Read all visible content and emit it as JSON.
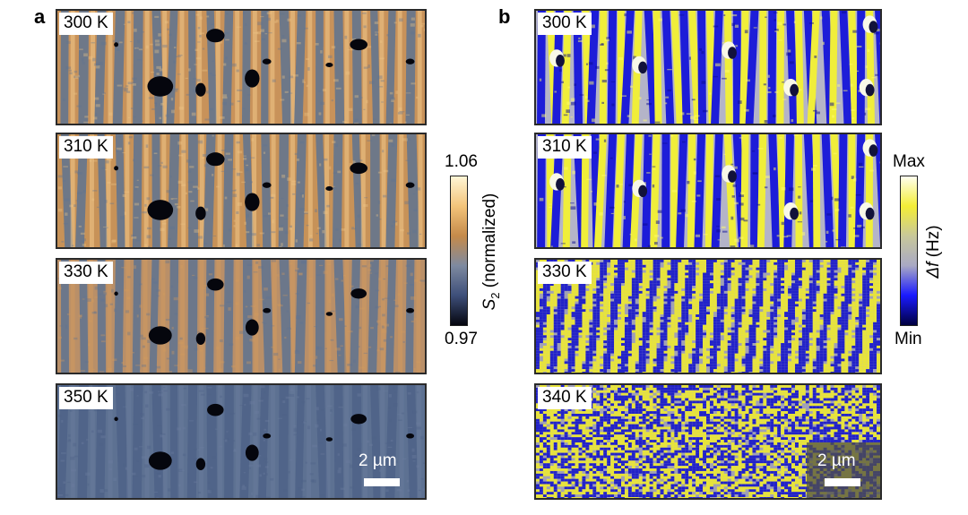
{
  "panel_a": {
    "letter": "a",
    "frames": [
      {
        "temperature": "300 K",
        "dot_scale": 1.0
      },
      {
        "temperature": "310 K",
        "dot_scale": 1.0
      },
      {
        "temperature": "330 K",
        "dot_scale": 0.9
      },
      {
        "temperature": "350 K",
        "dot_scale": 0.9
      }
    ],
    "colorbar": {
      "max_label": "1.06",
      "min_label": "0.97",
      "title_symbol": "S",
      "title_subscript": "2",
      "title_suffix": " (normalized)",
      "colors": [
        "#fff6d6",
        "#f3c47a",
        "#c58a4a",
        "#7e8aa0",
        "#3e4f7a",
        "#05060f"
      ]
    },
    "scalebar_label": "2 µm"
  },
  "panel_b": {
    "letter": "b",
    "frames": [
      {
        "temperature": "300 K"
      },
      {
        "temperature": "310 K"
      },
      {
        "temperature": "330 K"
      },
      {
        "temperature": "340 K"
      }
    ],
    "colorbar": {
      "max_label": "Max",
      "min_label": "Min",
      "title_symbol": "Δf",
      "title_suffix": " (Hz)",
      "colors": [
        "#fffff0",
        "#f4ee36",
        "#c8c89a",
        "#a9a9c4",
        "#1a1aff",
        "#000040"
      ]
    },
    "scalebar_label": "2 µm"
  }
}
